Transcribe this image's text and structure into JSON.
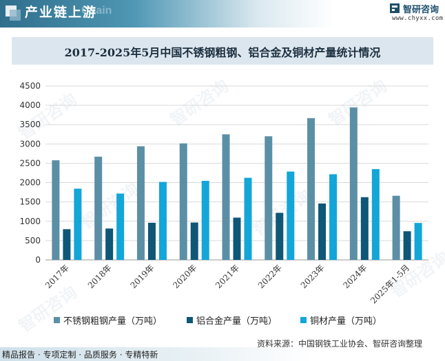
{
  "header": {
    "section_title": "产业链上游",
    "section_watermark": "Chain",
    "brand_name": "智研咨询",
    "brand_url": "www.chyxx.com"
  },
  "watermark_text": "智研咨询",
  "chart_data": {
    "type": "bar",
    "title": "2017-2025年5月中国不锈钢粗钢、铝合金及铜材产量统计情况",
    "categories": [
      "2017年",
      "2018年",
      "2019年",
      "2020年",
      "2021年",
      "2022年",
      "2023年",
      "2024年",
      "2025年1-5月"
    ],
    "series": [
      {
        "name": "不锈钢粗钢产量（万吨）",
        "color": "#5b8fa6",
        "values": [
          2577,
          2671,
          2940,
          3014,
          3249,
          3198,
          3668,
          3944,
          1660
        ]
      },
      {
        "name": "铝合金产量（万吨）",
        "color": "#0e5777",
        "values": [
          795,
          812,
          961,
          968,
          1094,
          1218,
          1460,
          1623,
          742
        ]
      },
      {
        "name": "铜材产量（万吨）",
        "color": "#13a6d8",
        "values": [
          1843,
          1716,
          2017,
          2046,
          2124,
          2286,
          2217,
          2350,
          957
        ]
      }
    ],
    "ylim": [
      0,
      4500
    ],
    "yticks": [
      "0",
      "500",
      "1000",
      "1500",
      "2000",
      "2500",
      "3000",
      "3500",
      "4000",
      "4500"
    ],
    "grid": true,
    "legend_position": "bottom"
  },
  "source": "资料来源：中国钢铁工业协会、智研咨询整理",
  "footer": "精品报告 · 专项定制 · 品质服务 · 专精特新"
}
